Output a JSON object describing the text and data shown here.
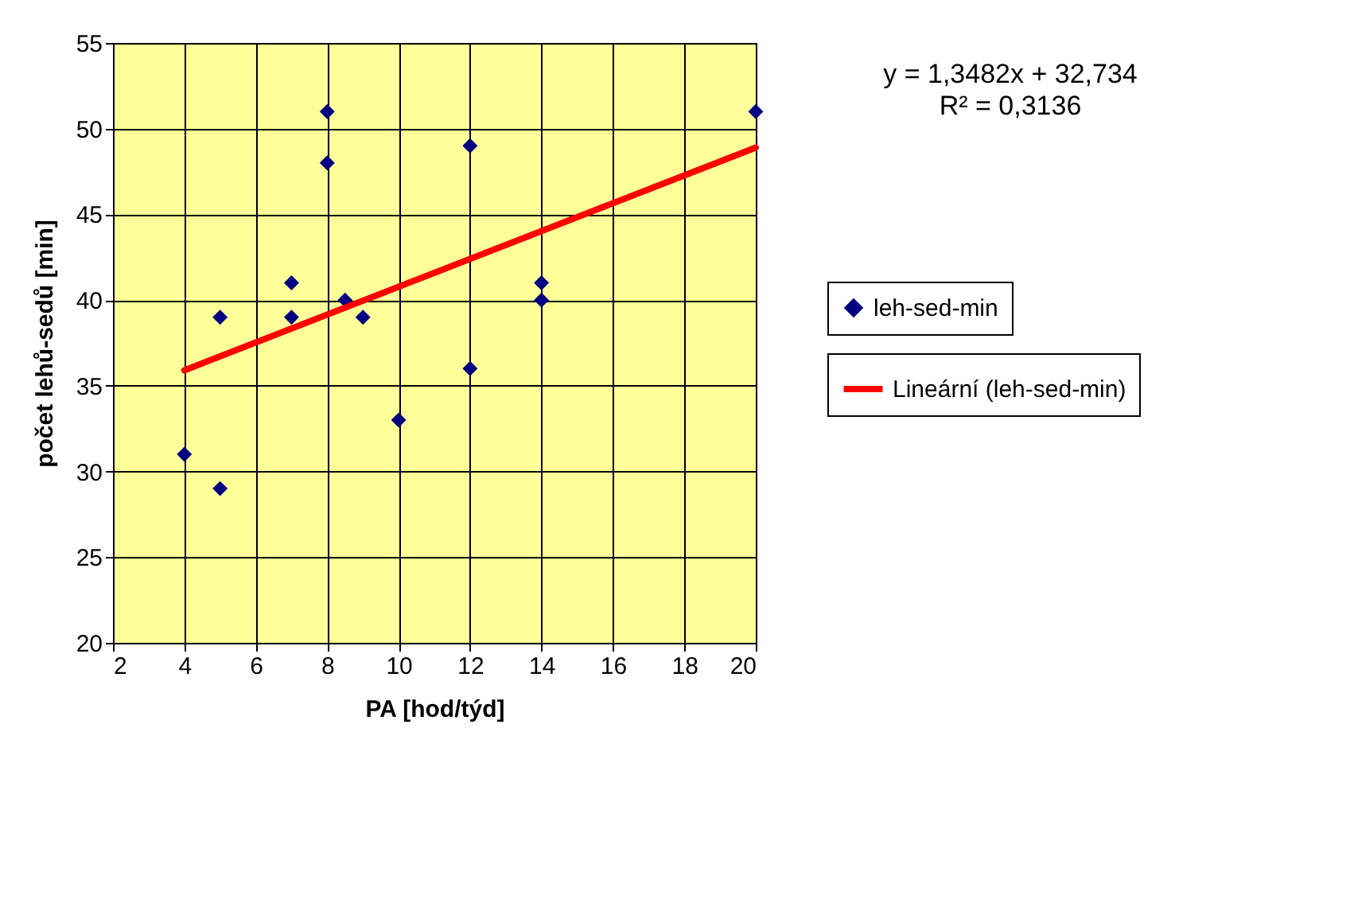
{
  "chart_data": {
    "type": "scatter",
    "xlabel": "PA [hod/týd]",
    "ylabel": "počet lehů-sedů [min]",
    "xlim": [
      2,
      20
    ],
    "xticks": [
      2,
      4,
      6,
      8,
      10,
      12,
      14,
      16,
      18,
      20
    ],
    "ylim": [
      20,
      55
    ],
    "yticks": [
      20,
      25,
      30,
      35,
      40,
      45,
      50,
      55
    ],
    "grid": true,
    "legend": "right",
    "marker": "diamond",
    "annotations": [
      "y = 1,3482x + 32,734",
      "R² = 0,3136"
    ],
    "series": [
      {
        "name": "leh-sed-min",
        "type": "scatter",
        "color": "#000080",
        "x": [
          4,
          5,
          5,
          7,
          7,
          8,
          8,
          8.5,
          9,
          10,
          12,
          12,
          14,
          14,
          20
        ],
        "values": [
          31,
          29,
          39,
          41,
          39,
          51,
          48,
          40,
          39,
          33,
          49,
          36,
          41,
          40,
          51
        ]
      },
      {
        "name": "Lineární (leh-sed-min)",
        "type": "line",
        "color": "#ff0000",
        "line_style": "solid",
        "marker": "none",
        "x": [
          4,
          20
        ],
        "values": [
          35.9,
          48.9
        ]
      }
    ]
  }
}
